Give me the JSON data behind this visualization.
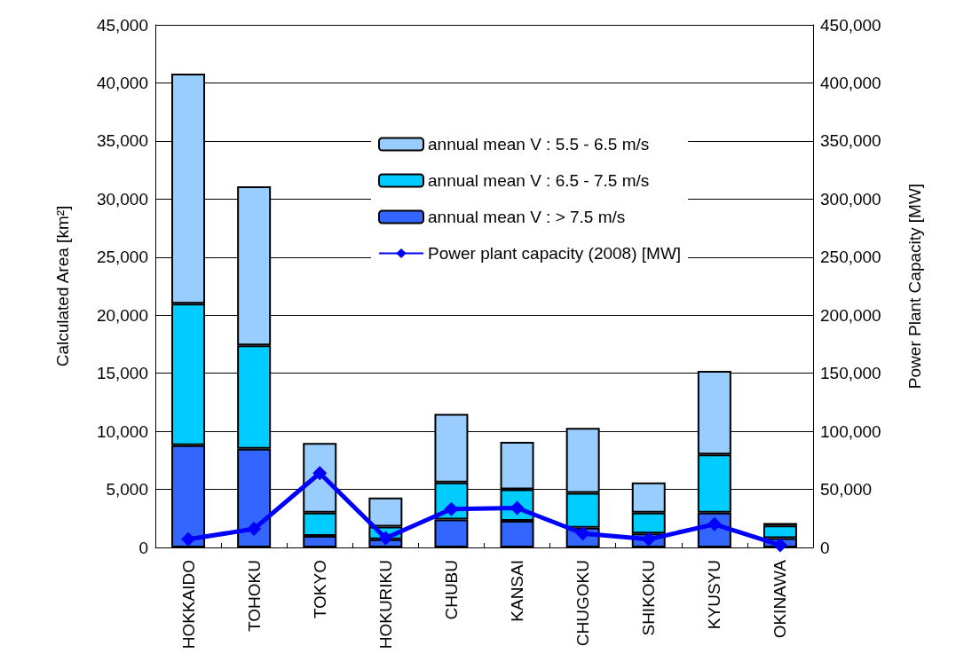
{
  "chart_data": {
    "type": "bar",
    "stacked": true,
    "categories": [
      "HOKKAIDO",
      "TOHOKU",
      "TOKYO",
      "HOKURIKU",
      "CHUBU",
      "KANSAI",
      "CHUGOKU",
      "SHIKOKU",
      "KYUSYU",
      "OKINAWA"
    ],
    "ylabel": "Calculated Area [km²]",
    "y2label": "Power Plant Capacity [MW]",
    "series": [
      {
        "name": "annual mean V : > 7.5 m/s",
        "color": "#3366ff",
        "values": [
          8800,
          8500,
          1000,
          700,
          2400,
          2300,
          1700,
          1200,
          3000,
          800
        ]
      },
      {
        "name": "annual mean V : 6.5 - 7.5 m/s",
        "color": "#00ccff",
        "values": [
          12200,
          8900,
          2000,
          1100,
          3200,
          2700,
          3000,
          1800,
          5000,
          1100
        ]
      },
      {
        "name": "annual mean V : 5.5 - 6.5 m/s",
        "color": "#99ccff",
        "values": [
          19800,
          13700,
          6000,
          2500,
          5900,
          4100,
          5600,
          2600,
          7200,
          200
        ]
      },
      {
        "name": "Power plant capacity (2008) [MW]",
        "type": "line",
        "axis": "y2",
        "color": "#0000ff",
        "marker": "diamond",
        "values": [
          7000,
          16000,
          64000,
          8000,
          33000,
          34000,
          12000,
          7000,
          20000,
          2000
        ]
      }
    ],
    "ylim": [
      0,
      45000
    ],
    "yticks": [
      0,
      {
        "value": 5000,
        "label": "5,000"
      },
      {
        "value": 10000,
        "label": "10,000"
      },
      {
        "value": 15000,
        "label": "15,000"
      },
      {
        "value": 20000,
        "label": "20,000"
      },
      {
        "value": 25000,
        "label": "25,000"
      },
      {
        "value": 30000,
        "label": "30,000"
      },
      {
        "value": 35000,
        "label": "35,000"
      },
      {
        "value": 40000,
        "label": "40,000"
      },
      {
        "value": 45000,
        "label": "45,000"
      }
    ],
    "y2lim": [
      0,
      450000
    ],
    "y2ticks": [
      0,
      {
        "value": 50000,
        "label": "50,000"
      },
      {
        "value": 100000,
        "label": "100,000"
      },
      {
        "value": 150000,
        "label": "150,000"
      },
      {
        "value": 200000,
        "label": "200,000"
      },
      {
        "value": 250000,
        "label": "250,000"
      },
      {
        "value": 300000,
        "label": "300,000"
      },
      {
        "value": 350000,
        "label": "350,000"
      },
      {
        "value": 400000,
        "label": "400,000"
      },
      {
        "value": 450000,
        "label": "450,000"
      }
    ],
    "grid": "y",
    "legend": "top right"
  }
}
